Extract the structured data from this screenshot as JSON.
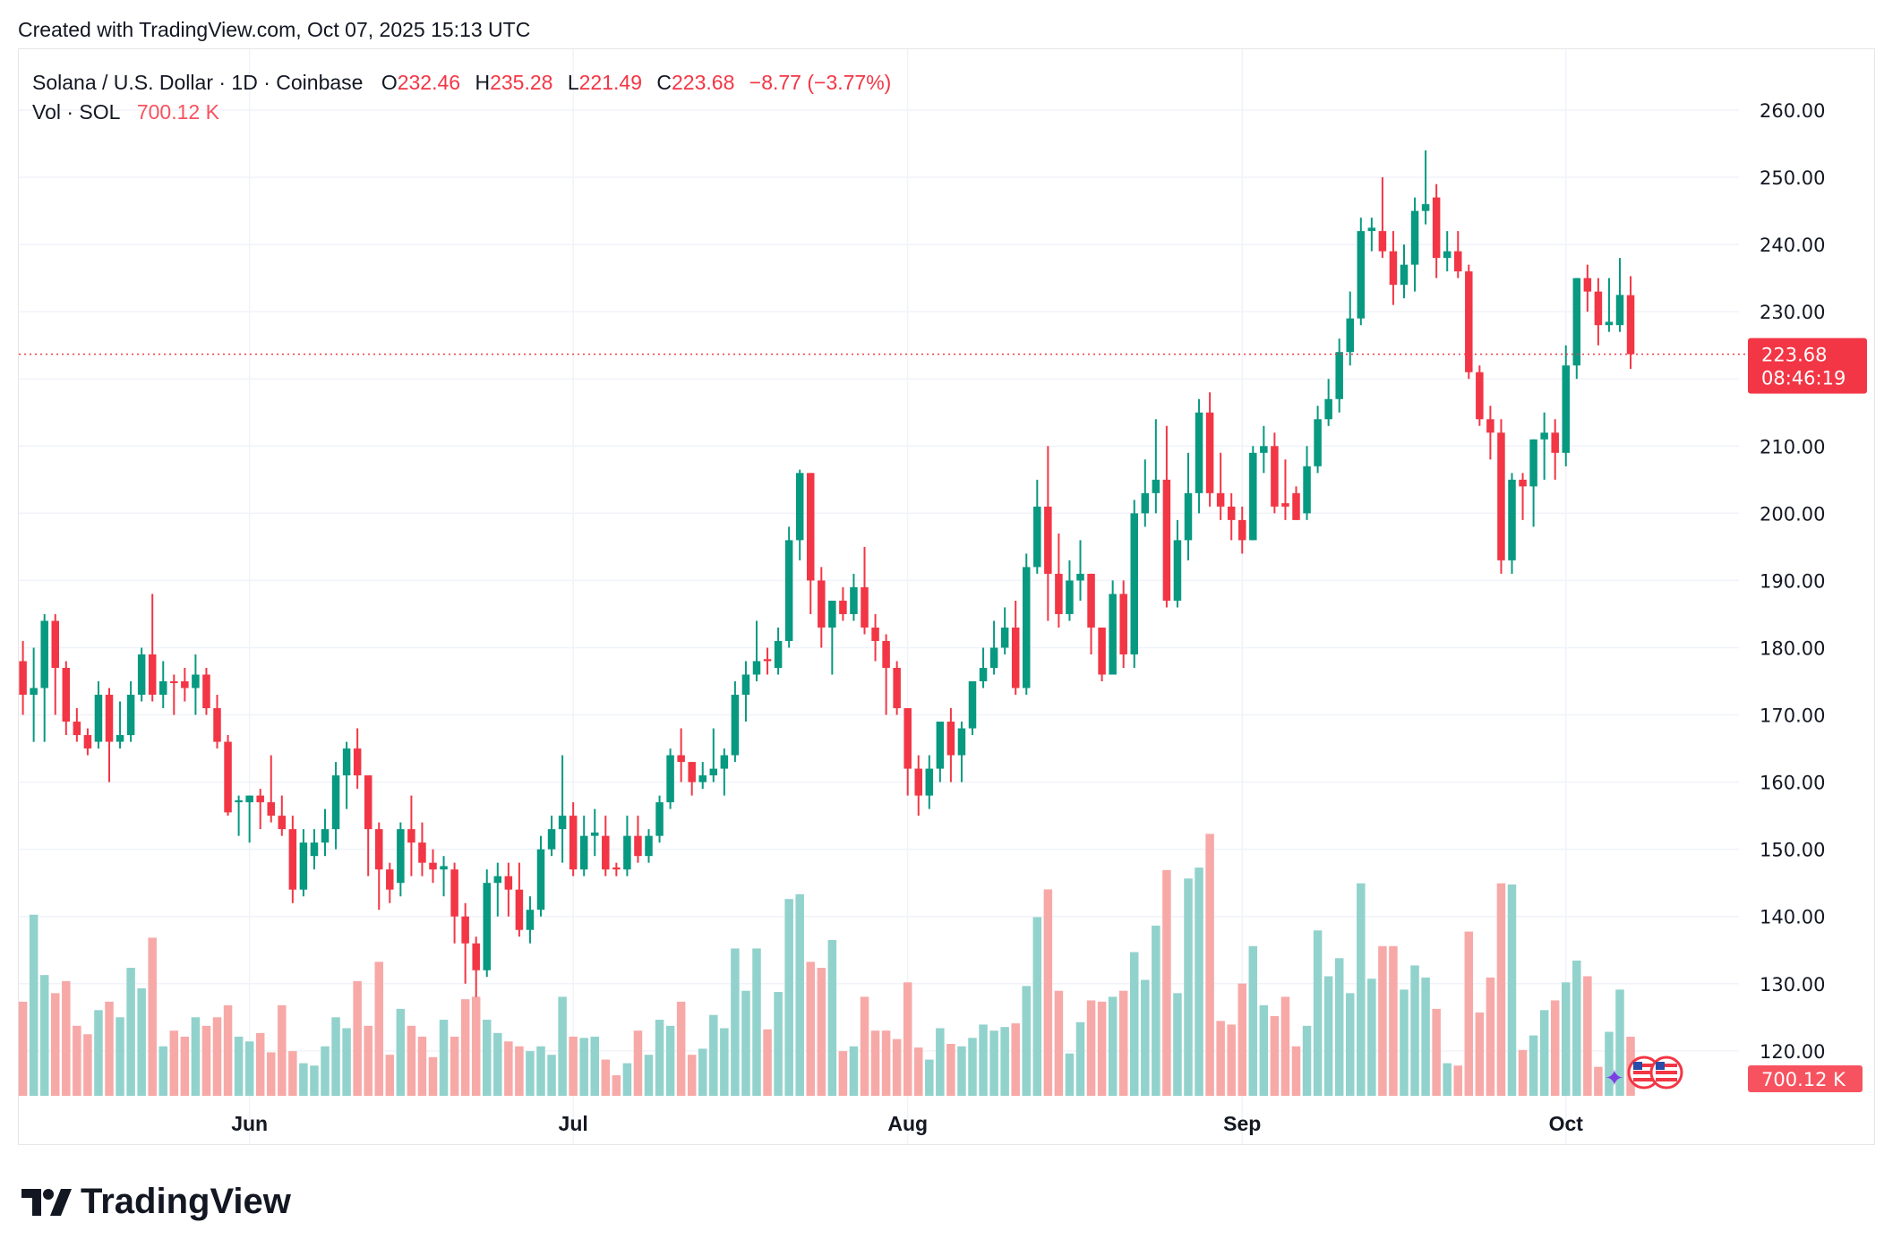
{
  "credit": "Created with TradingView.com, Oct 07, 2025 15:13 UTC",
  "legend": {
    "symbol": "Solana / U.S. Dollar · 1D · Coinbase",
    "o_label": "O",
    "open": "232.46",
    "h_label": "H",
    "high": "235.28",
    "l_label": "L",
    "low": "221.49",
    "c_label": "C",
    "close": "223.68",
    "change": "−8.77 (−3.77%)",
    "vol_label": "Vol · SOL",
    "vol_value": "700.12 K"
  },
  "price_label": {
    "price": "223.68",
    "countdown": "08:46:19"
  },
  "volume_label": "700.12 K",
  "logo_text": "TradingView",
  "colors": {
    "up": "#089981",
    "down": "#F23645",
    "up_vol": "#92D2CC",
    "down_vol": "#F7A9A7",
    "grid": "#F0F3FA"
  },
  "chart_data": {
    "type": "candlestick",
    "title": "Solana / U.S. Dollar · 1D · Coinbase",
    "start_date": "2025-05-11",
    "end_date": "2025-10-07",
    "ylim": [
      112,
      270
    ],
    "y_ticks": [
      "260.00",
      "250.00",
      "240.00",
      "230.00",
      "210.00",
      "200.00",
      "190.00",
      "180.00",
      "170.00",
      "160.00",
      "150.00",
      "140.00",
      "130.00",
      "120.00"
    ],
    "y_tick_values": [
      260,
      250,
      240,
      230,
      210,
      200,
      190,
      180,
      170,
      160,
      150,
      140,
      130,
      120
    ],
    "x_ticks": [
      {
        "label": "Jun",
        "index": 21
      },
      {
        "label": "Jul",
        "index": 51
      },
      {
        "label": "Aug",
        "index": 82
      },
      {
        "label": "Sep",
        "index": 113
      },
      {
        "label": "Oct",
        "index": 143
      }
    ],
    "volume_unit": "K",
    "ohlc": [
      [
        178,
        181,
        170,
        173
      ],
      [
        173,
        180,
        166,
        174
      ],
      [
        174,
        185,
        166,
        184
      ],
      [
        184,
        185,
        170,
        177
      ],
      [
        177,
        178,
        167,
        169
      ],
      [
        169,
        171,
        166,
        167
      ],
      [
        167,
        168,
        164,
        165
      ],
      [
        166,
        175,
        165,
        173
      ],
      [
        173,
        174,
        160,
        166
      ],
      [
        166,
        172,
        165,
        167
      ],
      [
        167,
        175,
        166,
        173
      ],
      [
        173,
        180,
        172,
        179
      ],
      [
        179,
        188,
        172,
        173
      ],
      [
        173,
        178,
        171,
        175
      ],
      [
        175,
        176,
        170,
        174.8
      ],
      [
        175,
        177,
        172,
        174
      ],
      [
        174,
        179,
        170,
        176
      ],
      [
        176,
        177,
        170,
        171
      ],
      [
        171,
        173,
        165,
        166
      ],
      [
        166,
        167,
        155,
        155.5
      ],
      [
        157,
        158,
        152,
        157.3
      ],
      [
        157,
        158,
        151,
        158
      ],
      [
        158,
        159,
        153,
        157
      ],
      [
        157,
        164,
        154,
        155
      ],
      [
        155,
        158,
        152,
        153
      ],
      [
        153,
        155,
        142,
        144
      ],
      [
        144,
        153,
        143,
        151
      ],
      [
        149,
        153,
        147,
        151
      ],
      [
        151,
        156,
        149,
        153
      ],
      [
        153,
        163,
        150,
        161
      ],
      [
        161,
        166,
        156,
        165
      ],
      [
        165,
        168,
        159,
        161
      ],
      [
        161,
        161,
        146,
        153
      ],
      [
        153,
        154,
        141,
        147
      ],
      [
        147,
        148,
        142,
        144
      ],
      [
        145,
        154,
        143,
        153
      ],
      [
        153,
        158,
        146,
        151
      ],
      [
        151,
        154,
        146,
        148
      ],
      [
        148,
        150,
        145,
        147
      ],
      [
        147,
        149,
        143,
        147.5
      ],
      [
        147,
        148,
        136,
        140
      ],
      [
        140,
        142,
        130,
        136
      ],
      [
        136,
        137,
        128,
        132
      ],
      [
        132,
        147,
        131,
        145
      ],
      [
        145,
        148,
        140,
        146
      ],
      [
        146,
        148,
        140,
        144
      ],
      [
        144,
        148,
        137,
        138
      ],
      [
        138,
        143,
        136,
        141
      ],
      [
        141,
        152,
        140,
        150
      ],
      [
        150,
        155,
        149,
        153
      ],
      [
        153,
        164,
        148,
        155
      ],
      [
        155,
        157,
        146,
        147
      ],
      [
        147,
        155,
        146,
        152
      ],
      [
        152,
        156,
        149,
        152.5
      ],
      [
        152,
        155,
        146,
        147
      ],
      [
        147.3,
        148,
        146,
        147
      ],
      [
        147,
        155,
        146,
        152
      ],
      [
        152,
        155,
        148,
        149
      ],
      [
        149,
        153,
        148,
        152
      ],
      [
        152,
        158,
        151,
        157
      ],
      [
        157,
        165,
        156,
        164
      ],
      [
        164,
        168,
        160,
        163
      ],
      [
        163,
        163,
        158,
        160
      ],
      [
        160,
        163,
        159,
        161
      ],
      [
        161,
        168,
        160,
        162
      ],
      [
        162,
        165,
        158,
        164
      ],
      [
        164,
        175,
        163,
        173
      ],
      [
        173,
        178,
        169,
        176
      ],
      [
        176,
        184,
        175,
        178
      ],
      [
        178.3,
        180,
        176,
        178
      ],
      [
        177,
        183,
        176,
        181
      ],
      [
        181,
        198,
        180,
        196
      ],
      [
        196,
        206.5,
        193,
        206
      ],
      [
        206,
        206,
        185,
        190
      ],
      [
        190,
        192,
        180,
        183
      ],
      [
        183,
        187,
        176,
        187
      ],
      [
        187,
        189,
        184,
        185
      ],
      [
        185,
        191,
        184,
        189
      ],
      [
        189,
        195,
        182,
        183
      ],
      [
        183,
        185,
        178,
        181
      ],
      [
        181,
        182,
        170,
        177
      ],
      [
        177,
        178,
        170,
        171
      ],
      [
        171,
        171,
        158,
        162
      ],
      [
        162,
        164,
        155,
        158
      ],
      [
        158,
        164,
        156,
        162
      ],
      [
        162,
        169,
        160,
        169
      ],
      [
        169,
        171,
        160,
        164
      ],
      [
        164,
        169,
        160,
        168
      ],
      [
        168,
        175,
        167,
        175
      ],
      [
        175,
        180,
        174,
        177
      ],
      [
        177,
        184,
        176,
        180
      ],
      [
        180,
        186,
        179,
        183
      ],
      [
        183,
        187,
        173,
        174
      ],
      [
        174,
        194,
        173,
        192
      ],
      [
        192,
        205,
        191,
        201
      ],
      [
        201,
        210,
        184,
        191
      ],
      [
        191,
        197,
        183,
        185
      ],
      [
        185,
        193,
        184,
        190
      ],
      [
        190,
        196,
        187,
        191
      ],
      [
        191,
        191,
        179,
        183
      ],
      [
        183,
        183,
        175,
        176
      ],
      [
        176,
        190,
        176,
        188
      ],
      [
        188,
        190,
        177,
        179
      ],
      [
        179,
        202,
        177,
        200
      ],
      [
        200,
        208,
        198,
        203
      ],
      [
        203,
        214,
        200,
        205
      ],
      [
        205,
        213,
        186,
        187
      ],
      [
        187,
        199,
        186,
        196
      ],
      [
        196,
        209,
        193,
        203
      ],
      [
        203,
        217,
        200,
        215
      ],
      [
        215,
        218,
        201,
        203
      ],
      [
        203,
        209,
        199,
        201
      ],
      [
        201,
        203,
        196,
        199
      ],
      [
        199,
        201,
        194,
        196
      ],
      [
        196,
        210,
        196,
        209
      ],
      [
        209,
        213,
        206,
        210
      ],
      [
        210,
        212,
        200,
        201
      ],
      [
        201.5,
        208,
        199,
        201
      ],
      [
        203,
        204,
        199,
        199
      ],
      [
        200,
        210,
        199,
        207
      ],
      [
        207,
        216,
        206,
        214
      ],
      [
        214,
        220,
        213,
        217
      ],
      [
        217,
        226,
        215,
        224
      ],
      [
        224,
        233,
        222,
        229
      ],
      [
        229,
        244,
        228,
        242
      ],
      [
        242,
        244,
        239,
        242.5
      ],
      [
        242,
        250,
        238,
        239
      ],
      [
        239,
        242,
        231,
        234
      ],
      [
        234,
        240,
        232,
        237
      ],
      [
        237,
        247,
        233,
        245
      ],
      [
        245,
        254,
        243,
        246
      ],
      [
        247,
        249,
        235,
        238
      ],
      [
        238,
        242,
        236,
        239
      ],
      [
        239,
        242,
        235,
        236
      ],
      [
        236,
        237,
        220,
        221
      ],
      [
        221,
        222,
        213,
        214
      ],
      [
        214,
        216,
        208,
        212
      ],
      [
        212,
        214,
        191,
        193
      ],
      [
        193,
        206,
        191,
        205
      ],
      [
        205,
        206,
        199,
        204
      ],
      [
        204,
        211,
        198,
        211
      ],
      [
        211,
        215,
        205,
        212
      ],
      [
        212,
        214,
        205,
        209
      ],
      [
        209,
        225,
        207,
        222
      ],
      [
        222,
        235,
        220,
        235
      ],
      [
        235,
        237,
        230,
        233
      ],
      [
        233,
        235,
        225,
        228
      ],
      [
        228,
        235,
        227,
        228.5
      ],
      [
        228,
        238,
        227,
        232.5
      ],
      [
        232.46,
        235.28,
        221.49,
        223.68
      ]
    ],
    "volume": [
      1115,
      2145,
      1430,
      1216,
      1359,
      829,
      729,
      1015,
      1115,
      930,
      1516,
      1273,
      1873,
      586,
      772,
      701,
      930,
      829,
      930,
      1073,
      701,
      644,
      744,
      515,
      1073,
      529,
      386,
      358,
      586,
      930,
      801,
      1359,
      829,
      1587,
      486,
      1030,
      829,
      701,
      458,
      901,
      701,
      1144,
      1173,
      901,
      744,
      644,
      586,
      529,
      586,
      486,
      1173,
      701,
      686,
      701,
      429,
      243,
      386,
      772,
      486,
      901,
      829,
      1115,
      486,
      558,
      958,
      801,
      1745,
      1244,
      1745,
      787,
      1230,
      2331,
      2388,
      1587,
      1516,
      1845,
      529,
      586,
      1173,
      772,
      772,
      672,
      1344,
      572,
      429,
      801,
      615,
      586,
      686,
      844,
      772,
      815,
      858,
      1301,
      2116,
      2445,
      1244,
      501,
      872,
      1130,
      1115,
      1173,
      1244,
      1702,
      1373,
      2016,
      2674,
      1216,
      2574,
      2703,
      3103,
      887,
      844,
      1330,
      1773,
      1073,
      944,
      1173,
      586,
      829,
      1959,
      1416,
      1630,
      1216,
      2517,
      1387,
      1773,
      1773,
      1258,
      1544,
      1401,
      1030,
      386,
      358,
      1945,
      987,
      1401,
      2517,
      2503,
      543,
      715,
      1015,
      1130,
      1344,
      1602,
      1416,
      343,
      758,
      1258,
      700.12
    ]
  }
}
